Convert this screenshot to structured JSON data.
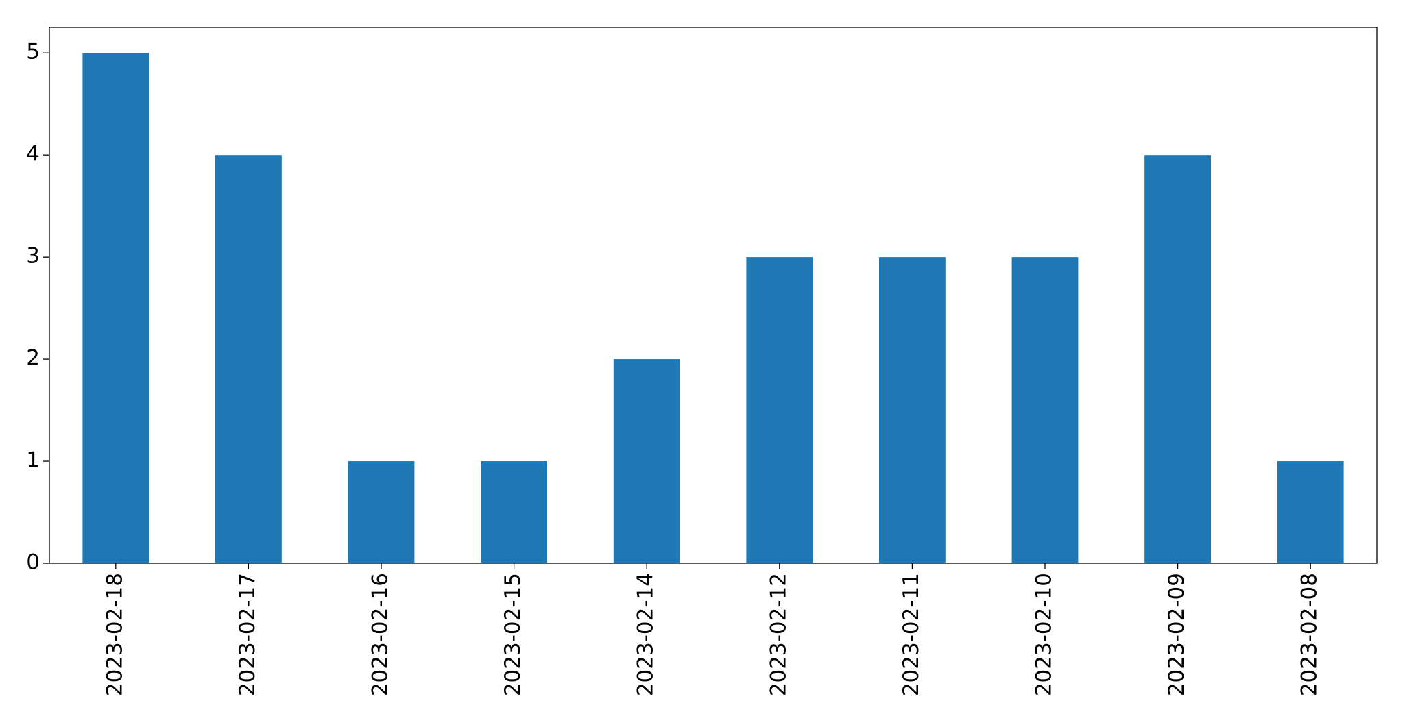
{
  "chart_data": {
    "type": "bar",
    "categories": [
      "2023-02-18",
      "2023-02-17",
      "2023-02-16",
      "2023-02-15",
      "2023-02-14",
      "2023-02-12",
      "2023-02-11",
      "2023-02-10",
      "2023-02-09",
      "2023-02-08"
    ],
    "values": [
      5,
      4,
      1,
      1,
      2,
      3,
      3,
      3,
      4,
      1
    ],
    "color": "#1f77b4",
    "ylim": [
      0,
      5.25
    ],
    "yticks": [
      0,
      1,
      2,
      3,
      4,
      5
    ],
    "grid": false
  }
}
